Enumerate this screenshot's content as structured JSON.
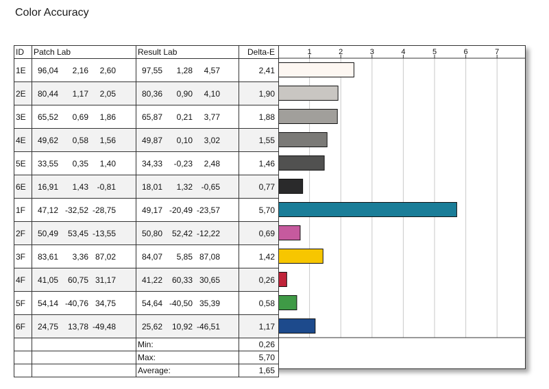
{
  "title": "Color Accuracy",
  "headers": {
    "id": "ID",
    "patch": "Patch Lab",
    "result": "Result Lab",
    "delta": "Delta-E"
  },
  "rows": [
    {
      "id": "1E",
      "patch": [
        "96,04",
        "2,16",
        "2,60"
      ],
      "result": [
        "97,55",
        "1,28",
        "4,57"
      ],
      "delta": "2,41"
    },
    {
      "id": "2E",
      "patch": [
        "80,44",
        "1,17",
        "2,05"
      ],
      "result": [
        "80,36",
        "0,90",
        "4,10"
      ],
      "delta": "1,90"
    },
    {
      "id": "3E",
      "patch": [
        "65,52",
        "0,69",
        "1,86"
      ],
      "result": [
        "65,87",
        "0,21",
        "3,77"
      ],
      "delta": "1,88"
    },
    {
      "id": "4E",
      "patch": [
        "49,62",
        "0,58",
        "1,56"
      ],
      "result": [
        "49,87",
        "0,10",
        "3,02"
      ],
      "delta": "1,55"
    },
    {
      "id": "5E",
      "patch": [
        "33,55",
        "0,35",
        "1,40"
      ],
      "result": [
        "34,33",
        "-0,23",
        "2,48"
      ],
      "delta": "1,46"
    },
    {
      "id": "6E",
      "patch": [
        "16,91",
        "1,43",
        "-0,81"
      ],
      "result": [
        "18,01",
        "1,32",
        "-0,65"
      ],
      "delta": "0,77"
    },
    {
      "id": "1F",
      "patch": [
        "47,12",
        "-32,52",
        "-28,75"
      ],
      "result": [
        "49,17",
        "-20,49",
        "-23,57"
      ],
      "delta": "5,70"
    },
    {
      "id": "2F",
      "patch": [
        "50,49",
        "53,45",
        "-13,55"
      ],
      "result": [
        "50,80",
        "52,42",
        "-12,22"
      ],
      "delta": "0,69"
    },
    {
      "id": "3F",
      "patch": [
        "83,61",
        "3,36",
        "87,02"
      ],
      "result": [
        "84,07",
        "5,85",
        "87,08"
      ],
      "delta": "1,42"
    },
    {
      "id": "4F",
      "patch": [
        "41,05",
        "60,75",
        "31,17"
      ],
      "result": [
        "41,22",
        "60,33",
        "30,65"
      ],
      "delta": "0,26"
    },
    {
      "id": "5F",
      "patch": [
        "54,14",
        "-40,76",
        "34,75"
      ],
      "result": [
        "54,64",
        "-40,50",
        "35,39"
      ],
      "delta": "0,58"
    },
    {
      "id": "6F",
      "patch": [
        "24,75",
        "13,78",
        "-49,48"
      ],
      "result": [
        "25,62",
        "10,92",
        "-46,51"
      ],
      "delta": "1,17"
    }
  ],
  "stats": [
    {
      "label": "Min:",
      "value": "0,26"
    },
    {
      "label": "Max:",
      "value": "5,70"
    },
    {
      "label": "Average:",
      "value": "1,65"
    }
  ],
  "chart_data": {
    "type": "bar",
    "orientation": "horizontal",
    "categories": [
      "1E",
      "2E",
      "3E",
      "4E",
      "5E",
      "6E",
      "1F",
      "2F",
      "3F",
      "4F",
      "5F",
      "6F"
    ],
    "values": [
      2.41,
      1.9,
      1.88,
      1.55,
      1.46,
      0.77,
      5.7,
      0.69,
      1.42,
      0.26,
      0.58,
      1.17
    ],
    "colors": [
      "#fdf7f2",
      "#c9c6c2",
      "#a19f9b",
      "#7b7a77",
      "#515150",
      "#2a2a2b",
      "#1a7d98",
      "#c65a9e",
      "#f7c600",
      "#c0243a",
      "#3f9a46",
      "#1d4a8c"
    ],
    "xlim": [
      0,
      8
    ],
    "ticks": [
      "1",
      "2",
      "3",
      "4",
      "5",
      "6",
      "7"
    ],
    "grid": true
  }
}
